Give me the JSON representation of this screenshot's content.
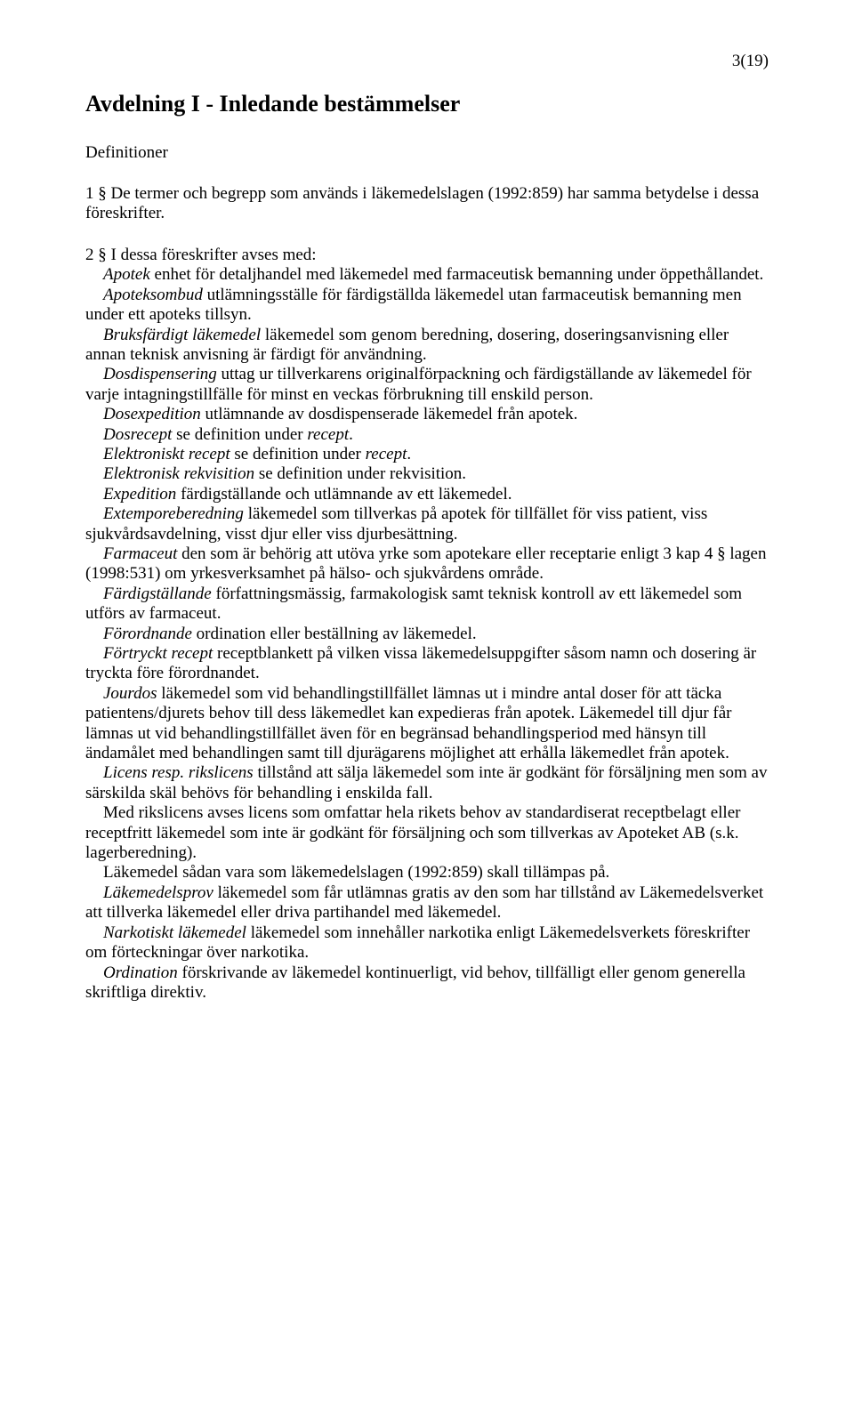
{
  "page_number": "3(19)",
  "heading": "Avdelning I - Inledande bestämmelser",
  "subheading": "Definitioner",
  "p1": "1 §   De termer och begrepp som används i läkemedelslagen (1992:859) har samma betydelse i dessa föreskrifter.",
  "p2_lead": "2 §   I dessa föreskrifter avses med:",
  "defs": {
    "apotek": {
      "term": "Apotek",
      "text": " enhet för detaljhandel med läkemedel med farmaceutisk bemanning under öppethållandet."
    },
    "apoteksombud": {
      "term": "Apoteksombud",
      "text": " utlämningsställe för färdigställda läkemedel utan farmaceutisk bemanning men under ett apoteks tillsyn."
    },
    "bruksfardigt": {
      "term": "Bruksfärdigt läkemedel",
      "text": " läkemedel som genom beredning, dosering, doseringsanvisning eller annan teknisk anvisning är färdigt för användning."
    },
    "dosdispensering": {
      "term": "Dosdispensering",
      "text": " uttag ur tillverkarens originalförpackning och färdigställande av läkemedel för varje intagningstillfälle för minst en veckas förbrukning till enskild person."
    },
    "dosexpedition": {
      "term": "Dosexpedition",
      "text": " utlämnande av dosdispenserade läkemedel från apotek."
    },
    "dosrecept": {
      "term": "Dosrecept",
      "text_before": " se definition under ",
      "ref": "recept",
      "text_after": "."
    },
    "elektroniskt_recept": {
      "term": "Elektroniskt recept",
      "text_before": " se definition under ",
      "ref": "recept",
      "text_after": "."
    },
    "elektronisk_rekvisition": {
      "term": "Elektronisk rekvisition",
      "text": " se definition under rekvisition."
    },
    "expedition": {
      "term": "Expedition",
      "text": " färdigställande och utlämnande av ett läkemedel."
    },
    "extempore": {
      "term": "Extemporeberedning",
      "text": " läkemedel som tillverkas på apotek för tillfället för viss patient, viss sjukvårdsavdelning, visst djur eller viss djurbesättning."
    },
    "farmaceut": {
      "term": "Farmaceut",
      "text": " den som är behörig att utöva yrke som apotekare eller receptarie enligt 3 kap 4 § lagen (1998:531) om yrkesverksamhet på hälso- och sjukvårdens område."
    },
    "fardigstallande": {
      "term": "Färdigställande",
      "text": " författningsmässig, farmakologisk samt teknisk kontroll av ett läkemedel som utförs av farmaceut."
    },
    "forordnande": {
      "term": "Förordnande",
      "text": " ordination eller beställning av läkemedel."
    },
    "fortryckt": {
      "term": "Förtryckt recept",
      "text": " receptblankett på vilken vissa läkemedelsuppgifter såsom namn och dosering är tryckta före förordnandet."
    },
    "jourdos": {
      "term": "Jourdos",
      "text": " läkemedel som vid behandlingstillfället lämnas ut i mindre antal doser för att täcka patientens/djurets behov till dess läkemedlet kan expedieras från apotek. Läkemedel till djur får lämnas ut vid behandlingstillfället även för en begränsad behandlingsperiod med hänsyn till ändamålet med behandlingen samt till djurägarens möjlighet att erhålla läkemedlet från apotek."
    },
    "licens": {
      "term": "Licens resp. rikslicens",
      "text": " tillstånd att sälja läkemedel som inte är godkänt för försäljning men som av särskilda skäl behövs för behandling i enskilda fall."
    },
    "rikslicens_note": "Med rikslicens avses licens som omfattar hela rikets behov av standardiserat receptbelagt eller receptfritt läkemedel som inte är godkänt för försäljning och som tillverkas av Apoteket AB (s.k. lagerberedning).",
    "lakemedel_note": "Läkemedel sådan vara som läkemedelslagen (1992:859) skall tillämpas på.",
    "lakemedelsprov": {
      "term": "Läkemedelsprov",
      "text": " läkemedel som får utlämnas gratis av den som har tillstånd av Läkemedelsverket att tillverka läkemedel eller driva partihandel med läkemedel."
    },
    "narkotiskt": {
      "term": "Narkotiskt läkemedel",
      "text": " läkemedel som innehåller narkotika enligt Läkemedelsverkets föreskrifter om förteckningar över narkotika."
    },
    "ordination": {
      "term": "Ordination",
      "text": " förskrivande av läkemedel kontinuerligt, vid behov, tillfälligt eller genom generella skriftliga direktiv."
    }
  }
}
